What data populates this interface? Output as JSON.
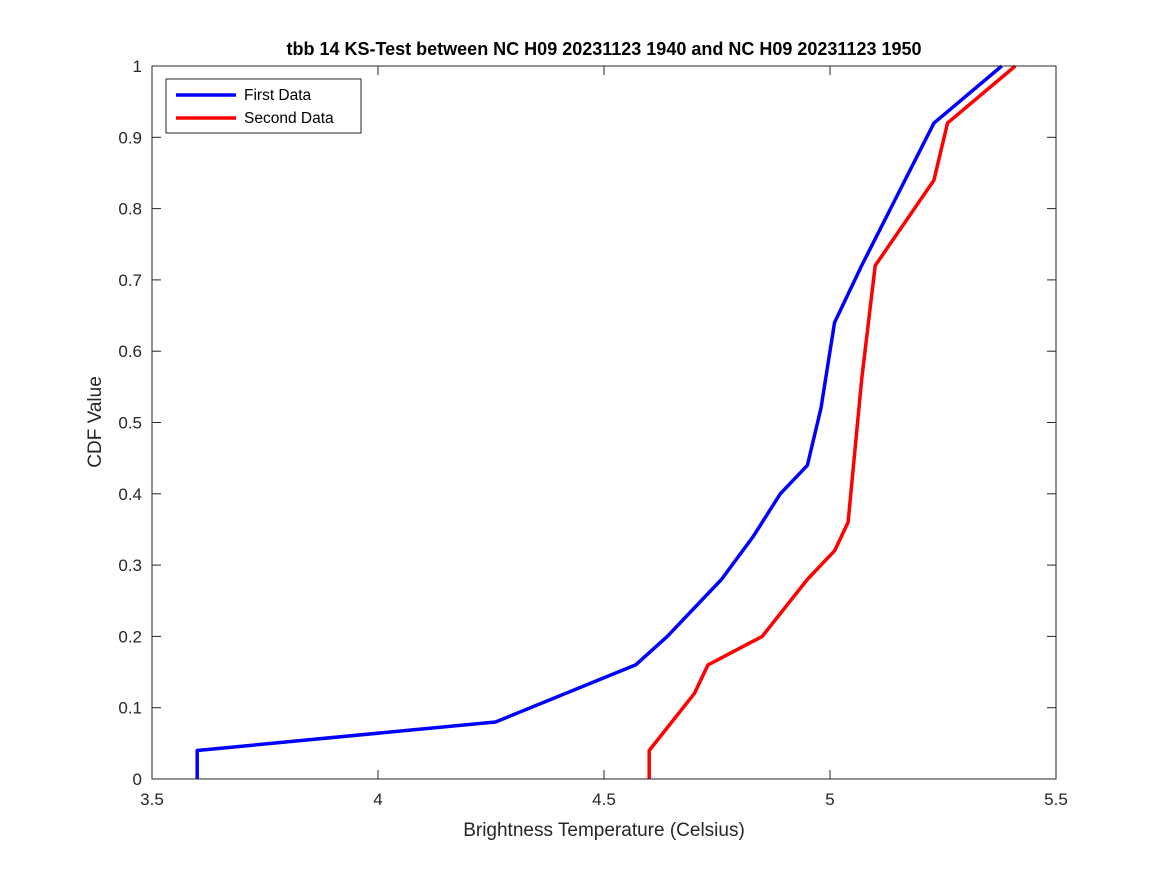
{
  "chart_data": {
    "type": "line",
    "title": "tbb 14 KS-Test between NC H09 20231123 1940 and NC H09 20231123 1950",
    "xlabel": "Brightness Temperature (Celsius)",
    "ylabel": "CDF Value",
    "xlim": [
      3.5,
      5.5
    ],
    "ylim": [
      0,
      1
    ],
    "xticks": [
      3.5,
      4,
      4.5,
      5,
      5.5
    ],
    "xtick_labels": [
      "3.5",
      "4",
      "4.5",
      "5",
      "5.5"
    ],
    "yticks": [
      0,
      0.1,
      0.2,
      0.3,
      0.4,
      0.5,
      0.6,
      0.7,
      0.8,
      0.9,
      1
    ],
    "ytick_labels": [
      "0",
      "0.1",
      "0.2",
      "0.3",
      "0.4",
      "0.5",
      "0.6",
      "0.7",
      "0.8",
      "0.9",
      "1"
    ],
    "grid": false,
    "legend_position": "top-left",
    "series": [
      {
        "name": "First Data",
        "color": "#0000ff",
        "x": [
          3.6,
          3.6,
          4.26,
          4.57,
          4.64,
          4.7,
          4.76,
          4.83,
          4.89,
          4.95,
          4.98,
          5.01,
          5.07,
          5.23,
          5.38
        ],
        "y": [
          0,
          0.04,
          0.08,
          0.16,
          0.2,
          0.24,
          0.28,
          0.34,
          0.4,
          0.44,
          0.52,
          0.64,
          0.72,
          0.92,
          1.0
        ]
      },
      {
        "name": "Second Data",
        "color": "#ff0000",
        "x": [
          4.6,
          4.6,
          4.7,
          4.73,
          4.85,
          4.95,
          5.01,
          5.04,
          5.07,
          5.1,
          5.23,
          5.26,
          5.41
        ],
        "y": [
          0,
          0.04,
          0.12,
          0.16,
          0.2,
          0.28,
          0.32,
          0.36,
          0.56,
          0.72,
          0.84,
          0.92,
          1.0
        ]
      }
    ]
  }
}
